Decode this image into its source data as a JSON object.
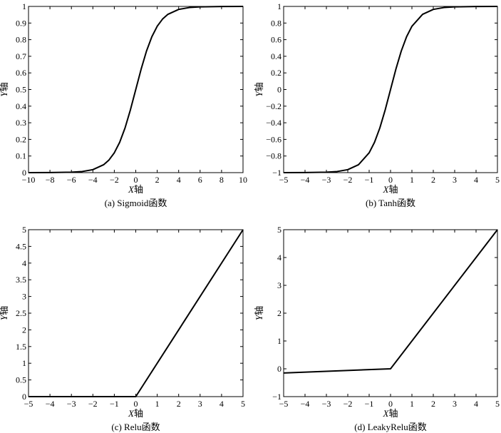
{
  "chart_data": [
    {
      "id": "sigmoid",
      "type": "line",
      "caption": "(a) Sigmoid函数",
      "xlabel_italic": "X",
      "xlabel_suffix": "轴",
      "ylabel_italic": "Y",
      "ylabel_suffix": "轴",
      "xlim": [
        -10,
        10
      ],
      "ylim": [
        0,
        1
      ],
      "xticks": [
        -10,
        -8,
        -6,
        -4,
        -2,
        0,
        2,
        4,
        6,
        8,
        10
      ],
      "xtick_labels": [
        "−10",
        "−8",
        "−6",
        "−4",
        "−2",
        "0",
        "2",
        "4",
        "6",
        "8",
        "10"
      ],
      "yticks": [
        0,
        0.1,
        0.2,
        0.3,
        0.4,
        0.5,
        0.6,
        0.7,
        0.8,
        0.9,
        1
      ],
      "ytick_labels": [
        "0",
        "0.1",
        "0.2",
        "0.3",
        "0.4",
        "0.5",
        "0.6",
        "0.7",
        "0.8",
        "0.9",
        "1"
      ],
      "x": [
        -10,
        -8,
        -6,
        -5,
        -4,
        -3,
        -2.5,
        -2,
        -1.5,
        -1,
        -0.5,
        0,
        0.5,
        1,
        1.5,
        2,
        2.5,
        3,
        4,
        5,
        6,
        8,
        10
      ],
      "y": [
        4.54e-05,
        0.000335,
        0.00247,
        0.00669,
        0.018,
        0.0474,
        0.0759,
        0.1192,
        0.1824,
        0.2689,
        0.3775,
        0.5,
        0.6225,
        0.7311,
        0.8176,
        0.8808,
        0.9241,
        0.9526,
        0.982,
        0.9933,
        0.9975,
        0.99966,
        0.99995
      ],
      "grid": false
    },
    {
      "id": "tanh",
      "type": "line",
      "caption": "(b) Tanh函数",
      "xlabel_italic": "X",
      "xlabel_suffix": "轴",
      "ylabel_italic": "Y",
      "ylabel_suffix": "轴",
      "xlim": [
        -5,
        5
      ],
      "ylim": [
        -1,
        1
      ],
      "xticks": [
        -5,
        -4,
        -3,
        -2,
        -1,
        0,
        1,
        2,
        3,
        4,
        5
      ],
      "xtick_labels": [
        "−5",
        "−4",
        "−3",
        "−2",
        "−1",
        "0",
        "1",
        "2",
        "3",
        "4",
        "5"
      ],
      "yticks": [
        -1,
        -0.8,
        -0.6,
        -0.4,
        -0.2,
        0,
        0.2,
        0.4,
        0.6,
        0.8,
        1
      ],
      "ytick_labels": [
        "−1",
        "−0.8",
        "−0.6",
        "−0.4",
        "−0.2",
        "0",
        "0.2",
        "0.4",
        "0.6",
        "0.8",
        "1"
      ],
      "x": [
        -5,
        -4,
        -3,
        -2.5,
        -2,
        -1.5,
        -1,
        -0.75,
        -0.5,
        -0.25,
        0,
        0.25,
        0.5,
        0.75,
        1,
        1.5,
        2,
        2.5,
        3,
        4,
        5
      ],
      "y": [
        -0.9999,
        -0.9993,
        -0.9951,
        -0.9866,
        -0.964,
        -0.9051,
        -0.7616,
        -0.6351,
        -0.4621,
        -0.2449,
        0,
        0.2449,
        0.4621,
        0.6351,
        0.7616,
        0.9051,
        0.964,
        0.9866,
        0.9951,
        0.9993,
        0.9999
      ],
      "grid": false
    },
    {
      "id": "relu",
      "type": "line",
      "caption": "(c) Relu函数",
      "xlabel_italic": "X",
      "xlabel_suffix": "轴",
      "ylabel_italic": "Y",
      "ylabel_suffix": "轴",
      "xlim": [
        -5,
        5
      ],
      "ylim": [
        0,
        5
      ],
      "xticks": [
        -5,
        -4,
        -3,
        -2,
        -1,
        0,
        1,
        2,
        3,
        4,
        5
      ],
      "xtick_labels": [
        "−5",
        "−4",
        "−3",
        "−2",
        "−1",
        "0",
        "1",
        "2",
        "3",
        "4",
        "5"
      ],
      "yticks": [
        0,
        0.5,
        1,
        1.5,
        2,
        2.5,
        3,
        3.5,
        4,
        4.5,
        5
      ],
      "ytick_labels": [
        "0",
        "0.5",
        "1",
        "1.5",
        "2",
        "2.5",
        "3",
        "3.5",
        "4",
        "4.5",
        "5"
      ],
      "x": [
        -5,
        0,
        5
      ],
      "y": [
        0,
        0,
        5
      ],
      "grid": false
    },
    {
      "id": "leakyrelu",
      "type": "line",
      "caption": "(d) LeakyRelu函数",
      "xlabel_italic": "X",
      "xlabel_suffix": "轴",
      "ylabel_italic": "Y",
      "ylabel_suffix": "轴",
      "xlim": [
        -5,
        5
      ],
      "ylim": [
        -1,
        5
      ],
      "xticks": [
        -5,
        -4,
        -3,
        -2,
        -1,
        0,
        1,
        2,
        3,
        4,
        5
      ],
      "xtick_labels": [
        "−5",
        "−4",
        "−3",
        "−2",
        "−1",
        "0",
        "1",
        "2",
        "3",
        "4",
        "5"
      ],
      "yticks": [
        -1,
        0,
        1,
        2,
        3,
        4,
        5
      ],
      "ytick_labels": [
        "−1",
        "0",
        "1",
        "2",
        "3",
        "4",
        "5"
      ],
      "x": [
        -5,
        0,
        5
      ],
      "y": [
        -0.15,
        0,
        5
      ],
      "grid": false
    }
  ]
}
